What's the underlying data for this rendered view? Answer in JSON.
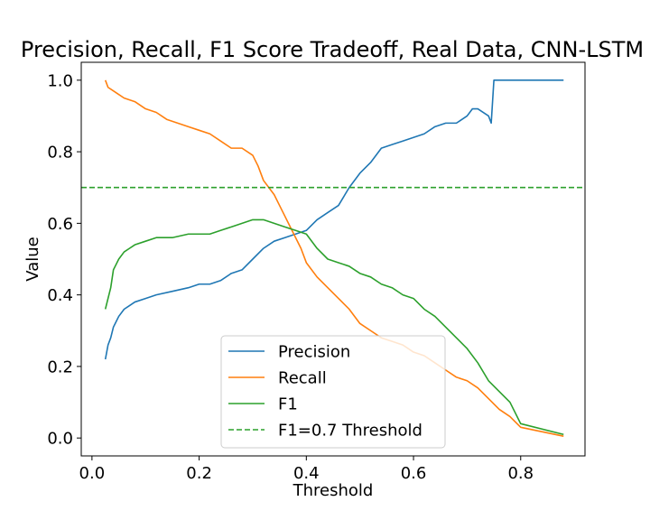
{
  "chart_data": {
    "type": "line",
    "title": "Precision, Recall, F1 Score Tradeoff, Real Data, CNN-LSTM",
    "xlabel": "Threshold",
    "ylabel": "Value",
    "xlim": [
      -0.02,
      0.92
    ],
    "ylim": [
      -0.05,
      1.05
    ],
    "xticks": [
      0.0,
      0.2,
      0.4,
      0.6,
      0.8
    ],
    "xtick_labels": [
      "0.0",
      "0.2",
      "0.4",
      "0.6",
      "0.8"
    ],
    "yticks": [
      0.0,
      0.2,
      0.4,
      0.6,
      0.8,
      1.0
    ],
    "ytick_labels": [
      "0.0",
      "0.2",
      "0.4",
      "0.6",
      "0.8",
      "1.0"
    ],
    "grid": false,
    "legend_position": "bottom-center",
    "series": [
      {
        "name": "Precision",
        "color": "#1f77b4",
        "style": "solid",
        "x": [
          0.025,
          0.03,
          0.035,
          0.04,
          0.05,
          0.06,
          0.07,
          0.08,
          0.1,
          0.12,
          0.15,
          0.18,
          0.2,
          0.22,
          0.24,
          0.26,
          0.28,
          0.3,
          0.32,
          0.34,
          0.36,
          0.38,
          0.4,
          0.42,
          0.44,
          0.46,
          0.48,
          0.5,
          0.52,
          0.54,
          0.56,
          0.58,
          0.6,
          0.62,
          0.64,
          0.66,
          0.68,
          0.7,
          0.71,
          0.72,
          0.74,
          0.745,
          0.75,
          0.8,
          0.88
        ],
        "y": [
          0.22,
          0.26,
          0.28,
          0.31,
          0.34,
          0.36,
          0.37,
          0.38,
          0.39,
          0.4,
          0.41,
          0.42,
          0.43,
          0.43,
          0.44,
          0.46,
          0.47,
          0.5,
          0.53,
          0.55,
          0.56,
          0.57,
          0.58,
          0.61,
          0.63,
          0.65,
          0.7,
          0.74,
          0.77,
          0.81,
          0.82,
          0.83,
          0.84,
          0.85,
          0.87,
          0.88,
          0.88,
          0.9,
          0.92,
          0.92,
          0.9,
          0.88,
          1.0,
          1.0,
          1.0
        ]
      },
      {
        "name": "Recall",
        "color": "#ff7f0e",
        "style": "solid",
        "x": [
          0.025,
          0.03,
          0.04,
          0.06,
          0.08,
          0.1,
          0.12,
          0.14,
          0.16,
          0.18,
          0.2,
          0.22,
          0.24,
          0.26,
          0.28,
          0.3,
          0.31,
          0.32,
          0.33,
          0.34,
          0.35,
          0.36,
          0.37,
          0.38,
          0.39,
          0.4,
          0.42,
          0.44,
          0.46,
          0.48,
          0.5,
          0.52,
          0.54,
          0.56,
          0.58,
          0.6,
          0.62,
          0.64,
          0.66,
          0.68,
          0.7,
          0.72,
          0.74,
          0.76,
          0.78,
          0.8,
          0.88
        ],
        "y": [
          1.0,
          0.98,
          0.97,
          0.95,
          0.94,
          0.92,
          0.91,
          0.89,
          0.88,
          0.87,
          0.86,
          0.85,
          0.83,
          0.81,
          0.81,
          0.79,
          0.76,
          0.72,
          0.7,
          0.68,
          0.65,
          0.62,
          0.59,
          0.56,
          0.53,
          0.49,
          0.45,
          0.42,
          0.39,
          0.36,
          0.32,
          0.3,
          0.28,
          0.27,
          0.26,
          0.24,
          0.23,
          0.21,
          0.19,
          0.17,
          0.16,
          0.14,
          0.11,
          0.08,
          0.06,
          0.03,
          0.005
        ]
      },
      {
        "name": "F1",
        "color": "#2ca02c",
        "style": "solid",
        "x": [
          0.025,
          0.03,
          0.035,
          0.04,
          0.05,
          0.06,
          0.07,
          0.08,
          0.1,
          0.12,
          0.15,
          0.18,
          0.2,
          0.22,
          0.24,
          0.26,
          0.28,
          0.3,
          0.32,
          0.34,
          0.36,
          0.38,
          0.4,
          0.42,
          0.44,
          0.46,
          0.48,
          0.5,
          0.52,
          0.54,
          0.56,
          0.58,
          0.6,
          0.62,
          0.64,
          0.66,
          0.68,
          0.7,
          0.72,
          0.74,
          0.76,
          0.78,
          0.8,
          0.88
        ],
        "y": [
          0.36,
          0.39,
          0.42,
          0.47,
          0.5,
          0.52,
          0.53,
          0.54,
          0.55,
          0.56,
          0.56,
          0.57,
          0.57,
          0.57,
          0.58,
          0.59,
          0.6,
          0.61,
          0.61,
          0.6,
          0.59,
          0.58,
          0.57,
          0.53,
          0.5,
          0.49,
          0.48,
          0.46,
          0.45,
          0.43,
          0.42,
          0.4,
          0.39,
          0.36,
          0.34,
          0.31,
          0.28,
          0.25,
          0.21,
          0.16,
          0.13,
          0.1,
          0.04,
          0.01
        ]
      },
      {
        "name": "F1=0.7 Threshold",
        "color": "#2ca02c",
        "style": "dashed",
        "x": [
          -0.02,
          0.92
        ],
        "y": [
          0.7,
          0.7
        ]
      }
    ]
  }
}
